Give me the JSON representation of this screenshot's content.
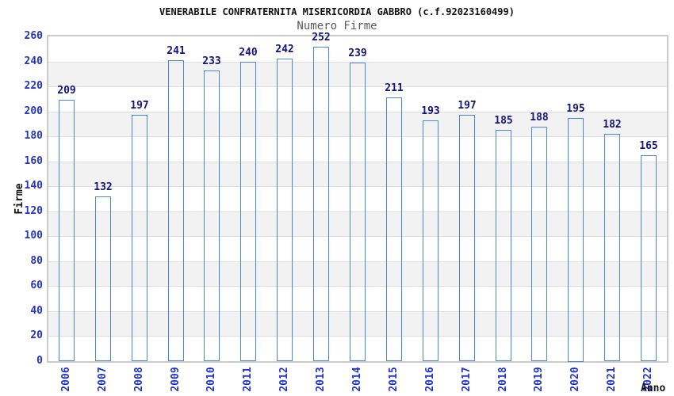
{
  "chart_data": {
    "type": "bar",
    "title": "VENERABILE CONFRATERNITA MISERICORDIA GABBRO (c.f.92023160499)",
    "subtitle": "Numero Firme",
    "xlabel": "Anno",
    "ylabel": "Firme",
    "categories": [
      "2006",
      "2007",
      "2008",
      "2009",
      "2010",
      "2011",
      "2012",
      "2013",
      "2014",
      "2015",
      "2016",
      "2017",
      "2018",
      "2019",
      "2020",
      "2021",
      "2022"
    ],
    "values": [
      209,
      132,
      197,
      241,
      233,
      240,
      242,
      252,
      239,
      211,
      193,
      197,
      185,
      188,
      195,
      182,
      165
    ],
    "yticks": [
      "0",
      "20",
      "40",
      "60",
      "80",
      "100",
      "120",
      "140",
      "160",
      "180",
      "200",
      "220",
      "240",
      "260"
    ],
    "ylim": [
      0,
      260
    ],
    "ytick_step": 20,
    "grid": "horizontal-alternating-bands",
    "legend": "none",
    "colors": {
      "bar_edge_dark": "#14147a",
      "bar_center_light": "#c7cbe9",
      "bar_border": "#4a86e0",
      "tick_label_blue": "#2233cc",
      "value_label_navy": "#13137d",
      "band_gray": "#f2f2f2",
      "band_white": "#ffffff",
      "plot_border": "#cbcbcb",
      "title_color": "#111111",
      "subtitle_color": "#595959"
    }
  }
}
